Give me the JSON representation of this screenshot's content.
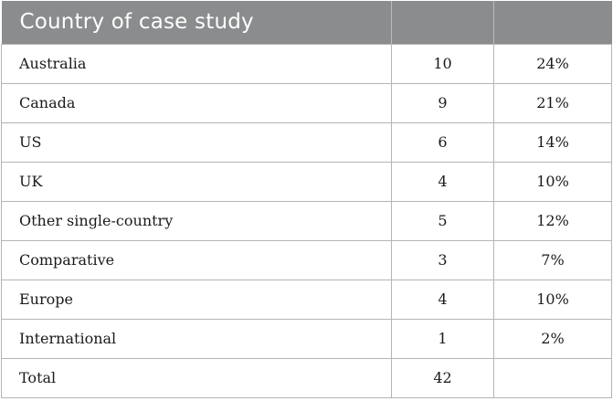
{
  "header": {
    "title": "Country of case study",
    "col2": "",
    "col3": ""
  },
  "rows": [
    {
      "label": "Australia",
      "count": "10",
      "percent": "24%"
    },
    {
      "label": "Canada",
      "count": "9",
      "percent": "21%"
    },
    {
      "label": "US",
      "count": "6",
      "percent": "14%"
    },
    {
      "label": "UK",
      "count": "4",
      "percent": "10%"
    },
    {
      "label": "Other single-country",
      "count": "5",
      "percent": "12%"
    },
    {
      "label": "Comparative",
      "count": "3",
      "percent": "7%"
    },
    {
      "label": "Europe",
      "count": "4",
      "percent": "10%"
    },
    {
      "label": "International",
      "count": "1",
      "percent": "2%"
    },
    {
      "label": "Total",
      "count": "42",
      "percent": ""
    }
  ],
  "colors": {
    "header_bg": "#8a8c8d",
    "header_text": "#ffffff",
    "grid_line": "#b5b5b5"
  }
}
